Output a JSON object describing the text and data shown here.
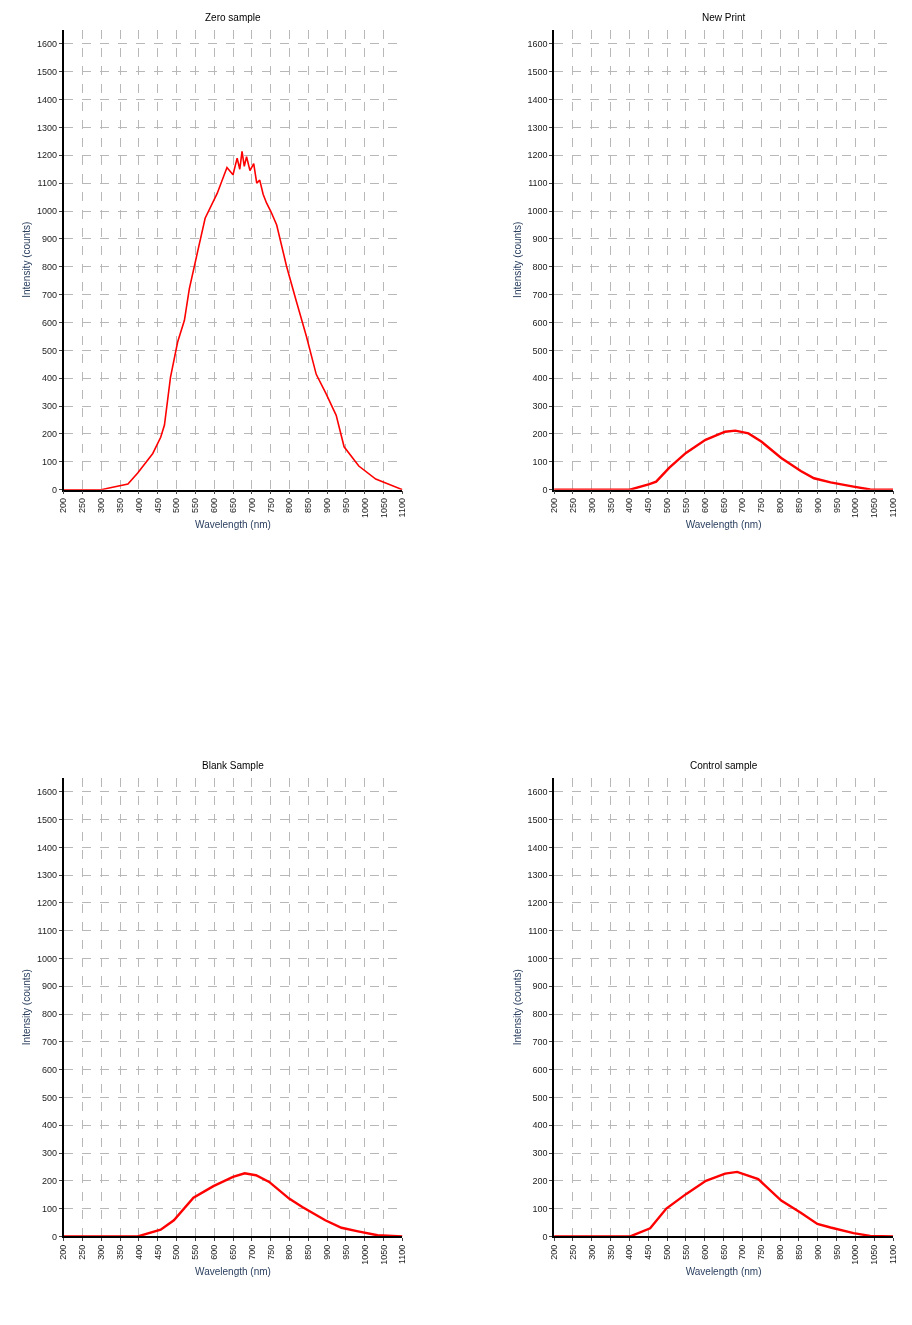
{
  "chart_data": [
    {
      "type": "line",
      "title": "Zero sample",
      "xlabel": "Wavelength (nm)",
      "ylabel": "Intensity (counts)",
      "xlim": [
        200,
        1100
      ],
      "ylim": [
        0,
        1650
      ],
      "xticks": [
        200,
        250,
        300,
        350,
        400,
        450,
        500,
        550,
        600,
        650,
        700,
        750,
        800,
        850,
        900,
        950,
        1000,
        1050,
        1100
      ],
      "yticks": [
        0,
        100,
        200,
        300,
        400,
        500,
        600,
        700,
        800,
        900,
        1000,
        1100,
        1200,
        1300,
        1400,
        1500,
        1600
      ],
      "grid": true,
      "marker": "none",
      "line_style": "solid",
      "series": [
        {
          "color": "#ff0000",
          "x": [
            200,
            300,
            318,
            371,
            397,
            437,
            458,
            468,
            484,
            503,
            521,
            534,
            555,
            576,
            608,
            634,
            650,
            661,
            668,
            674,
            680,
            686,
            695,
            705,
            713,
            721,
            730,
            739,
            750,
            766,
            792,
            818,
            845,
            871,
            897,
            924,
            945,
            984,
            1029,
            1100
          ],
          "values": [
            0,
            0,
            5,
            20,
            60,
            130,
            188,
            232,
            403,
            530,
            608,
            721,
            848,
            974,
            1063,
            1156,
            1130,
            1190,
            1150,
            1214,
            1160,
            1195,
            1145,
            1170,
            1100,
            1111,
            1060,
            1029,
            1000,
            950,
            803,
            677,
            550,
            414,
            345,
            267,
            154,
            85,
            38,
            0
          ]
        }
      ]
    },
    {
      "type": "line",
      "title": "New Print",
      "xlabel": "Wavelength (nm)",
      "ylabel": "Intensity (counts)",
      "xlim": [
        200,
        1100
      ],
      "ylim": [
        0,
        1650
      ],
      "xticks": [
        200,
        250,
        300,
        350,
        400,
        450,
        500,
        550,
        600,
        650,
        700,
        750,
        800,
        850,
        900,
        950,
        1000,
        1050,
        1100
      ],
      "yticks": [
        0,
        100,
        200,
        300,
        400,
        500,
        600,
        700,
        800,
        900,
        1000,
        1100,
        1200,
        1300,
        1400,
        1500,
        1600
      ],
      "grid": true,
      "marker": "none",
      "line_style": "solid",
      "series": [
        {
          "color": "#ff0000",
          "x": [
            200,
            401,
            453,
            471,
            506,
            550,
            602,
            654,
            681,
            716,
            750,
            803,
            855,
            890,
            934,
            995,
            1039,
            1100
          ],
          "values": [
            0,
            0,
            20,
            29,
            79,
            132,
            179,
            208,
            212,
            202,
            173,
            114,
            67,
            41,
            26,
            11,
            1,
            0
          ]
        }
      ]
    },
    {
      "type": "line",
      "title": "Blank Sample",
      "xlabel": "Wavelength (nm)",
      "ylabel": "Intensity (counts)",
      "xlim": [
        200,
        1100
      ],
      "ylim": [
        0,
        1650
      ],
      "xticks": [
        200,
        250,
        300,
        350,
        400,
        450,
        500,
        550,
        600,
        650,
        700,
        750,
        800,
        850,
        900,
        950,
        1000,
        1050,
        1100
      ],
      "yticks": [
        0,
        100,
        200,
        300,
        400,
        500,
        600,
        700,
        800,
        900,
        1000,
        1100,
        1200,
        1300,
        1400,
        1500,
        1600
      ],
      "grid": true,
      "marker": "none",
      "line_style": "solid",
      "series": [
        {
          "color": "#ff0000",
          "x": [
            200,
            397,
            458,
            493,
            545,
            598,
            650,
            681,
            711,
            746,
            799,
            834,
            895,
            938,
            982,
            1034,
            1100
          ],
          "values": [
            0,
            0,
            24,
            58,
            139,
            181,
            214,
            227,
            220,
            196,
            136,
            106,
            58,
            31,
            18,
            4,
            0
          ]
        }
      ]
    },
    {
      "type": "line",
      "title": "Control sample",
      "xlabel": "Wavelength (nm)",
      "ylabel": "Intensity (counts)",
      "xlim": [
        200,
        1100
      ],
      "ylim": [
        0,
        1650
      ],
      "xticks": [
        200,
        250,
        300,
        350,
        400,
        450,
        500,
        550,
        600,
        650,
        700,
        750,
        800,
        850,
        900,
        950,
        1000,
        1050,
        1100
      ],
      "yticks": [
        0,
        100,
        200,
        300,
        400,
        500,
        600,
        700,
        800,
        900,
        1000,
        1100,
        1200,
        1300,
        1400,
        1500,
        1600
      ],
      "grid": true,
      "marker": "none",
      "line_style": "solid",
      "series": [
        {
          "color": "#ff0000",
          "x": [
            200,
            402,
            455,
            498,
            551,
            603,
            654,
            686,
            742,
            803,
            855,
            899,
            934,
            995,
            1039,
            1100
          ],
          "values": [
            0,
            0,
            29,
            100,
            153,
            200,
            226,
            232,
            206,
            129,
            85,
            45,
            32,
            12,
            2,
            0
          ]
        }
      ]
    }
  ]
}
